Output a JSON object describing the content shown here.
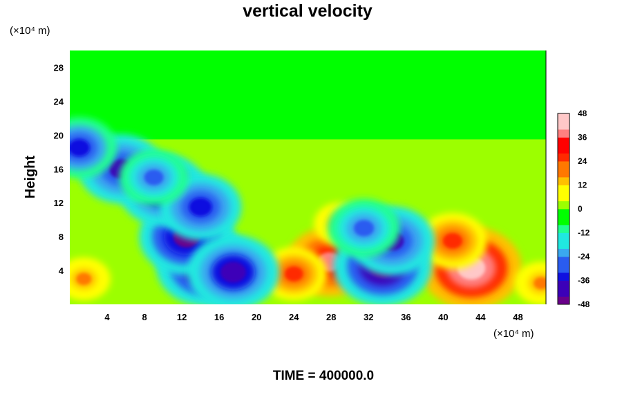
{
  "chart_data": {
    "type": "heatmap",
    "title": "vertical velocity",
    "ylabel": "Height",
    "xunit": "(×10⁴ m)",
    "yunit": "(×10⁴ m)",
    "footer": "TIME = 400000.0",
    "xlim": [
      0,
      51
    ],
    "ylim": [
      0,
      30
    ],
    "xticks": [
      4,
      8,
      12,
      16,
      20,
      24,
      28,
      32,
      36,
      40,
      44,
      48
    ],
    "yticks": [
      4,
      8,
      12,
      16,
      20,
      24,
      28
    ],
    "colorbar": {
      "min": -48,
      "max": 48,
      "step": 4,
      "ticks": [
        48,
        36,
        24,
        12,
        0,
        -12,
        -24,
        -36,
        -48
      ],
      "colors_low_to_high": [
        "#6a008a",
        "#3c00b8",
        "#1010e0",
        "#2a5cf0",
        "#3aa8f0",
        "#20e8e0",
        "#20ff90",
        "#00ff00",
        "#9cff00",
        "#ffff00",
        "#ffc000",
        "#ff7800",
        "#ff2a00",
        "#ff0000",
        "#ff8080",
        "#ffc8c8"
      ]
    },
    "features": [
      {
        "kind": "updraft",
        "x": 43,
        "y": 4.3,
        "peak": 48
      },
      {
        "kind": "updraft",
        "x": 41,
        "y": 7.5,
        "peak": 28
      },
      {
        "kind": "updraft",
        "x": 27.8,
        "y": 5,
        "peak": 38
      },
      {
        "kind": "updraft",
        "x": 24,
        "y": 3.6,
        "peak": 26
      },
      {
        "kind": "updraft",
        "x": 29,
        "y": 9.5,
        "peak": 18
      },
      {
        "kind": "updraft",
        "x": 1.5,
        "y": 3,
        "peak": 18
      },
      {
        "kind": "updraft",
        "x": 50.5,
        "y": 2.5,
        "peak": 18
      },
      {
        "kind": "downdraft",
        "x": 14.5,
        "y": 4.5,
        "peak": -46
      },
      {
        "kind": "downdraft",
        "x": 12.5,
        "y": 8,
        "peak": -44
      },
      {
        "kind": "downdraft",
        "x": 17.5,
        "y": 3.8,
        "peak": -42
      },
      {
        "kind": "downdraft",
        "x": 33.5,
        "y": 4.5,
        "peak": -46
      },
      {
        "kind": "downdraft",
        "x": 34.5,
        "y": 7.5,
        "peak": -38
      },
      {
        "kind": "downdraft",
        "x": 31.5,
        "y": 9,
        "peak": -30
      },
      {
        "kind": "downdraft",
        "x": 10,
        "y": 13.5,
        "peak": -40
      },
      {
        "kind": "downdraft",
        "x": 14,
        "y": 11.5,
        "peak": -36
      },
      {
        "kind": "downdraft",
        "x": 5.5,
        "y": 16,
        "peak": -38
      },
      {
        "kind": "downdraft",
        "x": 1,
        "y": 18.5,
        "peak": -32
      },
      {
        "kind": "downdraft",
        "x": 9,
        "y": 15,
        "peak": -28
      }
    ]
  }
}
